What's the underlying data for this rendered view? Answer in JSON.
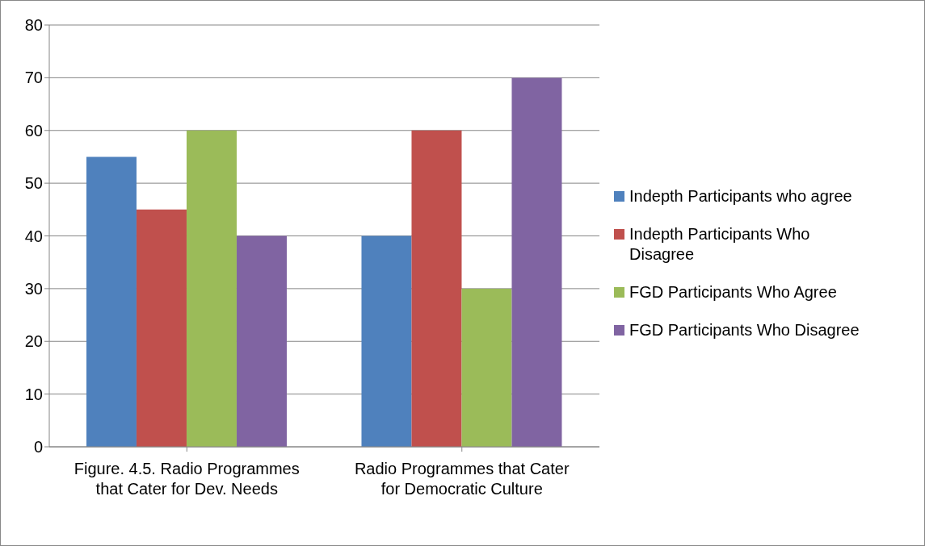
{
  "chart_data": {
    "type": "bar",
    "categories": [
      "Figure. 4.5. Radio Programmes that Cater for Dev. Needs",
      "Radio Programmes that Cater for Democratic Culture"
    ],
    "series": [
      {
        "name": "Indepth Participants who agree",
        "color": "#4f81bd",
        "values": [
          55,
          40
        ]
      },
      {
        "name": "Indepth Participants Who Disagree",
        "color": "#c0504d",
        "values": [
          45,
          60
        ]
      },
      {
        "name": "FGD Participants Who Agree",
        "color": "#9bbb59",
        "values": [
          60,
          30
        ]
      },
      {
        "name": "FGD Participants Who Disagree",
        "color": "#8064a2",
        "values": [
          40,
          70
        ]
      }
    ],
    "ylim": [
      0,
      80
    ],
    "yticks": [
      0,
      10,
      20,
      30,
      40,
      50,
      60,
      70,
      80
    ],
    "grid": "y",
    "legend": "right"
  }
}
